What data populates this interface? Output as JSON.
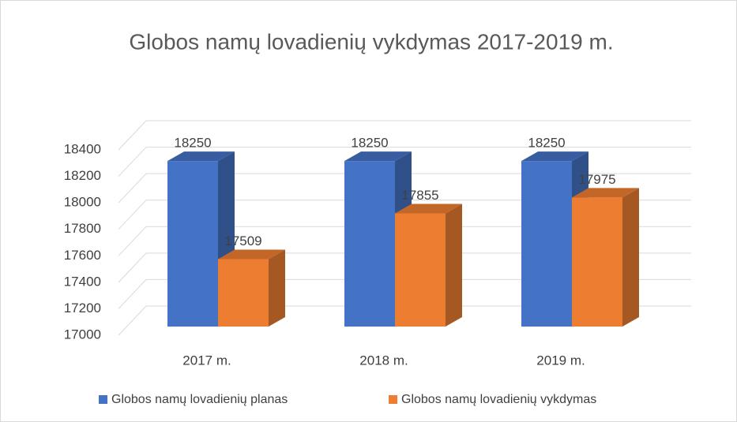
{
  "chart_data": {
    "type": "bar3d",
    "title": "Globos namų lovadienių vykdymas 2017-2019 m.",
    "categories": [
      "2017 m.",
      "2018 m.",
      "2019 m."
    ],
    "series": [
      {
        "name": "Globos namų lovadienių planas",
        "color": "#4472c4",
        "values": [
          18250,
          18250,
          18250
        ]
      },
      {
        "name": "Globos namų lovadienių vykdymas",
        "color": "#ed7d31",
        "values": [
          17509,
          17855,
          17975
        ]
      }
    ],
    "ylim": [
      17000,
      18400
    ],
    "yticks": [
      17000,
      17200,
      17400,
      17600,
      17800,
      18000,
      18200,
      18400
    ],
    "grid": true,
    "legend": "bottom"
  }
}
